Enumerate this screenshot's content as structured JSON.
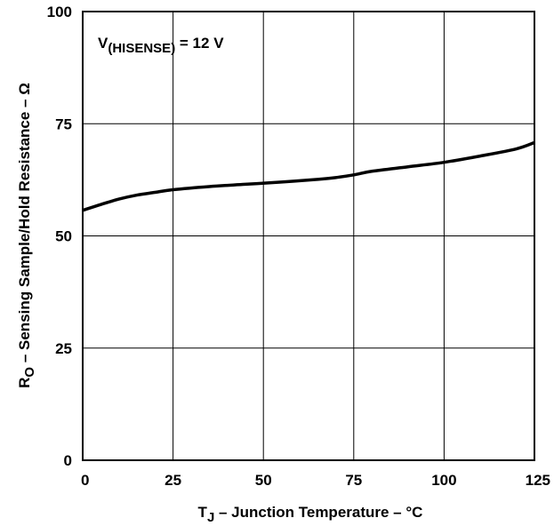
{
  "chart_data": {
    "type": "line",
    "title": "",
    "annotation": {
      "main": "V",
      "sub": "(HISENSE)",
      "rest": " = 12 V"
    },
    "xlabel": {
      "main": "T",
      "sub": "J",
      "rest": " – Junction Temperature – °C"
    },
    "ylabel": {
      "main": "R",
      "sub": "O",
      "rest": " – Sensing Sample/Hold Resistance – Ω"
    },
    "xlim": [
      0,
      125
    ],
    "ylim": [
      0,
      100
    ],
    "x_ticks": [
      0,
      25,
      50,
      75,
      100,
      125
    ],
    "y_ticks": [
      0,
      25,
      50,
      75,
      100
    ],
    "x_tick_labels": [
      "0",
      "25",
      "50",
      "75",
      "100",
      "125"
    ],
    "y_tick_labels": [
      "0",
      "25",
      "50",
      "75",
      "100"
    ],
    "grid": true,
    "series": [
      {
        "x": [
          0,
          5,
          10,
          15,
          20,
          25,
          35,
          45,
          55,
          65,
          70,
          75,
          80,
          90,
          100,
          110,
          120,
          125
        ],
        "y": [
          55.7,
          57.0,
          58.2,
          59.1,
          59.7,
          60.3,
          61.0,
          61.5,
          62.0,
          62.6,
          63.0,
          63.6,
          64.4,
          65.4,
          66.4,
          67.8,
          69.4,
          70.8
        ]
      }
    ]
  }
}
